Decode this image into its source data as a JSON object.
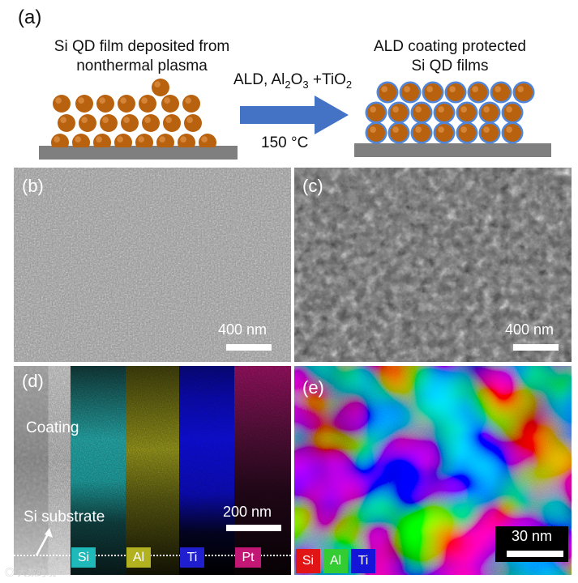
{
  "panel_a": {
    "label": "(a)",
    "left_title_line1": "Si QD film deposited from",
    "left_title_line2": "nonthermal plasma",
    "right_title_line1": "ALD coating protected",
    "right_title_line2": "Si QD films",
    "arrow_label_prefix": "ALD, Al",
    "arrow_label_sub1": "2",
    "arrow_label_mid": "O",
    "arrow_label_sub2": "3",
    "arrow_label_mid2": " +TiO",
    "arrow_label_sub3": "2",
    "temperature": "150 °C"
  },
  "panel_b": {
    "label": "(b)",
    "scale": "400 nm"
  },
  "panel_c": {
    "label": "(c)",
    "scale": "400 nm"
  },
  "panel_d": {
    "label": "(d)",
    "coating": "Coating",
    "substrate": "Si substrate",
    "scale": "200 nm",
    "maps": [
      "Si",
      "Al",
      "Ti",
      "Pt"
    ]
  },
  "panel_e": {
    "label": "(e)",
    "scale": "30 nm",
    "maps": [
      "Si",
      "Al",
      "Ti"
    ]
  },
  "watermark": "大数跨境",
  "colors": {
    "particle": "#b8620f",
    "arrow": "#4472c4",
    "coating": "#4f86d9",
    "substrate": "#7f7f7f",
    "si_map": "#1fb9b9",
    "al_map": "#b2b221",
    "ti_map": "#1f1fd0",
    "pt_map": "#c21775",
    "si_tag": "#e11515",
    "al_tag": "#33cc33",
    "ti_tag": "#1515d9"
  }
}
